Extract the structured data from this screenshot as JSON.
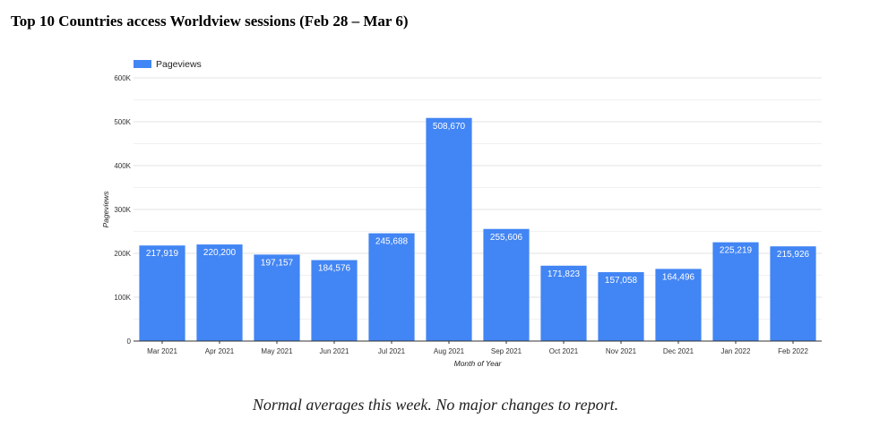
{
  "page_title": "Top 10 Countries access Worldview sessions (Feb 28 – Mar 6)",
  "note": "Normal averages this week.  No major changes to report.",
  "chart_data": {
    "type": "bar",
    "categories": [
      "Mar 2021",
      "Apr 2021",
      "May 2021",
      "Jun 2021",
      "Jul 2021",
      "Aug 2021",
      "Sep 2021",
      "Oct 2021",
      "Nov 2021",
      "Dec 2021",
      "Jan 2022",
      "Feb 2022"
    ],
    "series": [
      {
        "name": "Pageviews",
        "values": [
          217919,
          220200,
          197157,
          184576,
          245688,
          508670,
          255606,
          171823,
          157058,
          164496,
          225219,
          215926
        ],
        "color": "#4285f4"
      }
    ],
    "data_labels": [
      "217,919",
      "220,200",
      "197,157",
      "184,576",
      "245,688",
      "508,670",
      "255,606",
      "171,823",
      "157,058",
      "164,496",
      "225,219",
      "215,926"
    ],
    "xlabel": "Month of Year",
    "ylabel": "Pageviews",
    "ylim": [
      0,
      600000
    ],
    "yticks": [
      0,
      100000,
      200000,
      300000,
      400000,
      500000,
      600000
    ],
    "ytick_labels": [
      "0",
      "100K",
      "200K",
      "300K",
      "400K",
      "500K",
      "600K"
    ],
    "grid": true,
    "legend": "top-left"
  }
}
